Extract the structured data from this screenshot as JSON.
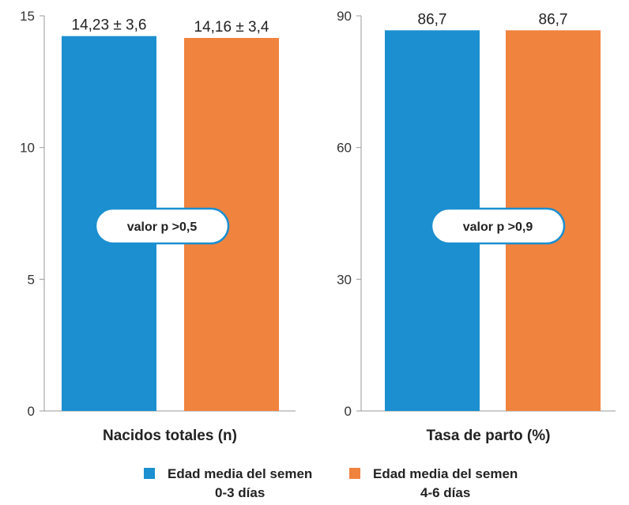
{
  "chart_data": [
    {
      "type": "bar",
      "categories": [
        "Edad media del semen 0-3 días",
        "Edad media del semen 4-6 días"
      ],
      "values": [
        14.23,
        14.16
      ],
      "value_labels": [
        "14,23 ± 3,6",
        "14,16 ± 3,4"
      ],
      "xlabel": "Nacidos totales (n)",
      "ylabel": "",
      "ylim": [
        0,
        15
      ],
      "yticks": [
        "0",
        "5",
        "10",
        "15"
      ],
      "annotation": "valor p >0,5",
      "grid": false
    },
    {
      "type": "bar",
      "categories": [
        "Edad media del semen 0-3 días",
        "Edad media del semen 4-6 días"
      ],
      "values": [
        86.7,
        86.7
      ],
      "value_labels": [
        "86,7",
        "86,7"
      ],
      "xlabel": "Tasa de parto (%)",
      "ylabel": "",
      "ylim": [
        0,
        90
      ],
      "yticks": [
        "0",
        "30",
        "60",
        "90"
      ],
      "annotation": "valor p >0,9",
      "grid": false
    }
  ],
  "colors": {
    "series_a": "#1b8fd0",
    "series_b": "#f0833e"
  },
  "legend": [
    {
      "line1": "Edad media del semen",
      "line2": "0-3 días",
      "color": "#1b8fd0"
    },
    {
      "line1": "Edad media del semen",
      "line2": "4-6 días",
      "color": "#f0833e"
    }
  ]
}
